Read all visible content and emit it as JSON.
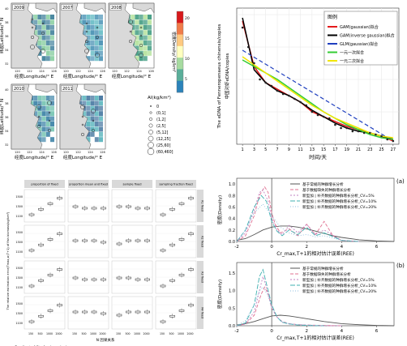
{
  "maps": {
    "panels": [
      {
        "year": "2009",
        "c1": "#1f6b8a",
        "c2": "#8fd1a6"
      },
      {
        "year": "2007",
        "c1": "#2a7fa8",
        "c2": "#6fc0c8"
      },
      {
        "year": "2008",
        "c1": "#1f8a6b",
        "c2": "#b7e3a0"
      },
      {
        "year": "2010",
        "c1": "#1e6f99",
        "c2": "#7cc7b5"
      },
      {
        "year": "2011",
        "c1": "#245e8f",
        "c2": "#5fb7bf"
      }
    ],
    "xlabel": "经度Longitude/° E",
    "ylabel": "纬度Latitude/° N",
    "xticks": [
      "120",
      "122",
      "124",
      "126"
    ],
    "yticks": [
      "32",
      "34",
      "36",
      "38",
      "40"
    ],
    "colorbar": {
      "label": "密度Density/ kg/km²",
      "ticks": [
        "20",
        "15",
        "10",
        "5"
      ],
      "colors": [
        "#d7191c",
        "#f07c4a",
        "#fec980",
        "#ffffbf",
        "#a6dba0",
        "#5aae9a",
        "#2b83ba"
      ]
    },
    "legend": {
      "title": "AI(kg/km²)",
      "items": [
        "0",
        "(0,1]",
        "(1,2]",
        "(2,5]",
        "(5,12]",
        "(12,25]",
        "(25,60]",
        "(60,460]"
      ]
    }
  },
  "edna_chart": {
    "ylabel": "The eDNA of Fenneropenaeus chinensis/copies",
    "ylabel_cn": "中国对虾eDNA/copies",
    "xlabel": "时间/天",
    "xticks": [
      "1",
      "3",
      "5",
      "7",
      "9",
      "11",
      "13",
      "15",
      "17",
      "19",
      "21",
      "23",
      "25",
      "27"
    ],
    "legend_title": "图例",
    "legend": [
      {
        "label": "GAM(gaussian)拟合",
        "color": "#e41a1c"
      },
      {
        "label": "GAM(inverse gaussian)拟合",
        "color": "#000000"
      },
      {
        "label": "GLM(gaussian)拟合",
        "color": "#1f3fbf"
      },
      {
        "label": "一元一次拟合",
        "color": "#33cc33"
      },
      {
        "label": "一元二次拟合",
        "color": "#f2e600"
      }
    ]
  },
  "chart_data": [
    {
      "type": "scatter",
      "title": "",
      "xlabel": "时间/天",
      "ylabel": "The eDNA of Fenneropenaeus chinensis/copies",
      "x": [
        1,
        2,
        3,
        4,
        5,
        6,
        7,
        8,
        9,
        10,
        11,
        12,
        13,
        14,
        15,
        16,
        17,
        18,
        19,
        20,
        21,
        22,
        23,
        24,
        25,
        26,
        27
      ],
      "y": [
        36,
        30,
        25,
        20,
        19,
        18,
        16.5,
        15.5,
        15,
        14,
        13,
        12,
        10,
        9,
        8.5,
        8,
        6,
        5,
        5,
        4,
        4,
        3.5,
        3.5,
        3,
        2.5,
        1.5,
        1
      ],
      "xlim": [
        0,
        28
      ],
      "ylim": [
        0,
        42
      ],
      "series": [
        {
          "name": "GAM(gaussian)拟合",
          "x": [
            1,
            3,
            5,
            7,
            9,
            11,
            13,
            15,
            17,
            19,
            21,
            23,
            25,
            27
          ],
          "y": [
            38,
            24,
            19,
            17,
            15,
            13,
            10,
            8.5,
            7,
            5.5,
            4.5,
            3.5,
            2.5,
            1
          ]
        },
        {
          "name": "GAM(inverse gaussian)拟合",
          "x": [
            1,
            3,
            5,
            7,
            9,
            11,
            13,
            15,
            17,
            19,
            21,
            23,
            25,
            27
          ],
          "y": [
            39,
            23,
            19,
            16.5,
            15,
            13,
            10.5,
            8.5,
            6.5,
            5,
            4,
            3.5,
            2.5,
            1.5
          ]
        },
        {
          "name": "GLM(gaussian)拟合",
          "x": [
            1,
            27
          ],
          "y": [
            29,
            1
          ]
        },
        {
          "name": "一元一次拟合",
          "x": [
            1,
            3,
            5,
            7,
            9,
            11,
            13,
            15,
            17,
            19,
            21,
            23,
            25,
            27
          ],
          "y": [
            26,
            24,
            22,
            20,
            17.5,
            15,
            12.5,
            10,
            8,
            6,
            4.5,
            3,
            2,
            1.5
          ]
        },
        {
          "name": "一元二次拟合",
          "x": [
            1,
            3,
            5,
            7,
            9,
            11,
            13,
            15,
            17,
            19,
            21,
            23,
            25,
            27
          ],
          "y": [
            27,
            24.5,
            22,
            19.5,
            17,
            14.5,
            12,
            10,
            8,
            6.5,
            5,
            3.5,
            2.5,
            2
          ]
        }
      ],
      "grid": true,
      "legend_position": "top-right"
    },
    {
      "type": "line",
      "panel": "(a)",
      "xlabel": "Cr_max,T+1的相对估计误差(REE)",
      "ylabel": "密度(Density)",
      "xlim": [
        -2,
        7
      ],
      "ylim": [
        0,
        1.1
      ],
      "xticks": [
        "-2",
        "0",
        "2",
        "4",
        "6"
      ],
      "yticks": [
        "0.0",
        "0.2",
        "0.4",
        "0.6",
        "0.8",
        "1.0"
      ],
      "series": [
        {
          "name": "基于常规的种群增长分析",
          "color": "#555555",
          "dash": "",
          "x": [
            -2,
            -1.5,
            -1,
            -0.5,
            0,
            0.5,
            1,
            1.5,
            2,
            2.5,
            3,
            3.5,
            4,
            5,
            6,
            7
          ],
          "y": [
            0.02,
            0.05,
            0.12,
            0.2,
            0.25,
            0.27,
            0.27,
            0.25,
            0.22,
            0.18,
            0.14,
            0.1,
            0.07,
            0.03,
            0.01,
            0.0
          ]
        },
        {
          "name": "基于数据缺失的种群增长分析",
          "color": "#e07090",
          "dash": "4,2",
          "x": [
            -2,
            -1.5,
            -1,
            -0.7,
            -0.4,
            -0.2,
            0,
            0.2,
            0.5,
            1,
            1.5,
            2,
            2.5,
            3,
            3.5,
            4,
            5
          ],
          "y": [
            0.0,
            0.1,
            0.45,
            0.8,
            0.95,
            0.85,
            0.5,
            0.3,
            0.15,
            0.22,
            0.1,
            0.3,
            0.12,
            0.35,
            0.1,
            0.02,
            0.0
          ]
        },
        {
          "name": "新型加 | 补齐数据的种群增长分析_CV=5%",
          "color": "#c080c0",
          "dash": "2,2",
          "x": [
            -2,
            -1.5,
            -1,
            -0.7,
            -0.5,
            -0.2,
            0,
            0.3,
            0.6,
            1,
            1.5,
            2,
            2.5,
            3,
            4,
            5
          ],
          "y": [
            0.0,
            0.15,
            0.55,
            0.85,
            0.9,
            0.7,
            0.4,
            0.2,
            0.12,
            0.28,
            0.15,
            0.3,
            0.12,
            0.2,
            0.02,
            0.0
          ]
        },
        {
          "name": "新型加 | 补齐数据的种群增长分析_CV=10%",
          "color": "#40b0b0",
          "dash": "6,2",
          "x": [
            -2,
            -1.5,
            -1,
            -0.6,
            -0.3,
            0,
            0.3,
            0.6,
            1,
            1.5,
            2,
            2.5,
            3,
            4,
            5
          ],
          "y": [
            0.0,
            0.2,
            0.6,
            0.8,
            0.7,
            0.35,
            0.18,
            0.1,
            0.2,
            0.12,
            0.25,
            0.1,
            0.15,
            0.02,
            0.0
          ]
        },
        {
          "name": "新型加 | 补齐数据的种群增长分析_CV=20%",
          "color": "#8fbfe0",
          "dash": "1,2",
          "x": [
            -2,
            -1.5,
            -1,
            -0.5,
            0,
            0.5,
            1,
            1.5,
            2,
            2.5,
            3,
            4,
            5
          ],
          "y": [
            0.0,
            0.2,
            0.5,
            0.65,
            0.45,
            0.25,
            0.15,
            0.1,
            0.12,
            0.08,
            0.1,
            0.02,
            0.0
          ]
        }
      ]
    },
    {
      "type": "line",
      "panel": "(b)",
      "xlabel": "Cr_max,T+1的相对估计误差(REE)",
      "ylabel": "密度(Density)",
      "xlim": [
        -2,
        7
      ],
      "ylim": [
        0,
        1.8
      ],
      "xticks": [
        "-2",
        "0",
        "2",
        "4",
        "6"
      ],
      "yticks": [
        "0.0",
        "0.5",
        "1.0",
        "1.5"
      ],
      "series": [
        {
          "name": "基于常规的种群增长分析",
          "color": "#555555",
          "dash": "",
          "x": [
            -2,
            -1.5,
            -1,
            -0.5,
            0,
            0.5,
            1,
            1.5,
            2,
            2.5,
            3,
            4,
            5,
            6,
            7
          ],
          "y": [
            0.02,
            0.06,
            0.12,
            0.2,
            0.28,
            0.3,
            0.28,
            0.24,
            0.2,
            0.16,
            0.12,
            0.06,
            0.03,
            0.01,
            0.0
          ]
        },
        {
          "name": "基于数据缺失的种群增长分析",
          "color": "#e07090",
          "dash": "4,2",
          "x": [
            -2,
            -1.5,
            -1,
            -0.6,
            -0.4,
            -0.2,
            0,
            0.3,
            0.6,
            1,
            1.5,
            2,
            3,
            4
          ],
          "y": [
            0.0,
            0.05,
            0.3,
            0.9,
            1.1,
            0.9,
            0.5,
            0.25,
            0.12,
            0.06,
            0.03,
            0.02,
            0.01,
            0.0
          ]
        },
        {
          "name": "新型加 | 补齐数据的种群增长分析_CV=5%",
          "color": "#c080c0",
          "dash": "2,2",
          "x": [
            -2,
            -1.5,
            -1,
            -0.7,
            -0.5,
            -0.3,
            0,
            0.3,
            0.6,
            1,
            1.5,
            2,
            3,
            4
          ],
          "y": [
            0.0,
            0.05,
            0.4,
            1.0,
            1.4,
            1.1,
            0.55,
            0.25,
            0.1,
            0.05,
            0.03,
            0.02,
            0.0,
            0.0
          ]
        },
        {
          "name": "新型加 | 补齐数据的种群增长分析_CV=10%",
          "color": "#40b0b0",
          "dash": "6,2",
          "x": [
            -2,
            -1.5,
            -1,
            -0.7,
            -0.5,
            -0.3,
            0,
            0.3,
            0.6,
            1,
            1.5,
            2,
            3
          ],
          "y": [
            0.0,
            0.08,
            0.6,
            1.4,
            1.6,
            1.2,
            0.6,
            0.25,
            0.1,
            0.05,
            0.02,
            0.01,
            0.0
          ]
        },
        {
          "name": "新型加 | 补齐数据的种群增长分析_CV=20%",
          "color": "#8fbfe0",
          "dash": "1,2",
          "x": [
            -2,
            -1.5,
            -1,
            -0.7,
            -0.5,
            -0.2,
            0,
            0.3,
            0.6,
            1,
            1.5,
            2,
            3
          ],
          "y": [
            0.0,
            0.15,
            0.6,
            1.0,
            1.1,
            0.85,
            0.5,
            0.25,
            0.12,
            0.06,
            0.03,
            0.02,
            0.0
          ]
        }
      ]
    }
  ],
  "facet": {
    "columns": [
      "proportion of fixed",
      "proportion mean and fixed",
      "sample fixed",
      "sampling fraction fixed"
    ],
    "rows": [
      "R1 fixed",
      "R2 fixed",
      "R3 fixed",
      "R4 fixed"
    ],
    "xticks": [
      "150",
      "500",
      "1000",
      "2000"
    ],
    "yticks": [
      "1100",
      "1300",
      "1500"
    ],
    "ylabel": "The relative estimation error(Tmax,w,T+1) of fish biomass(kg/km²)",
    "xlabel": "N 因果关系",
    "caption": "Gradient of fit of eel survival"
  }
}
